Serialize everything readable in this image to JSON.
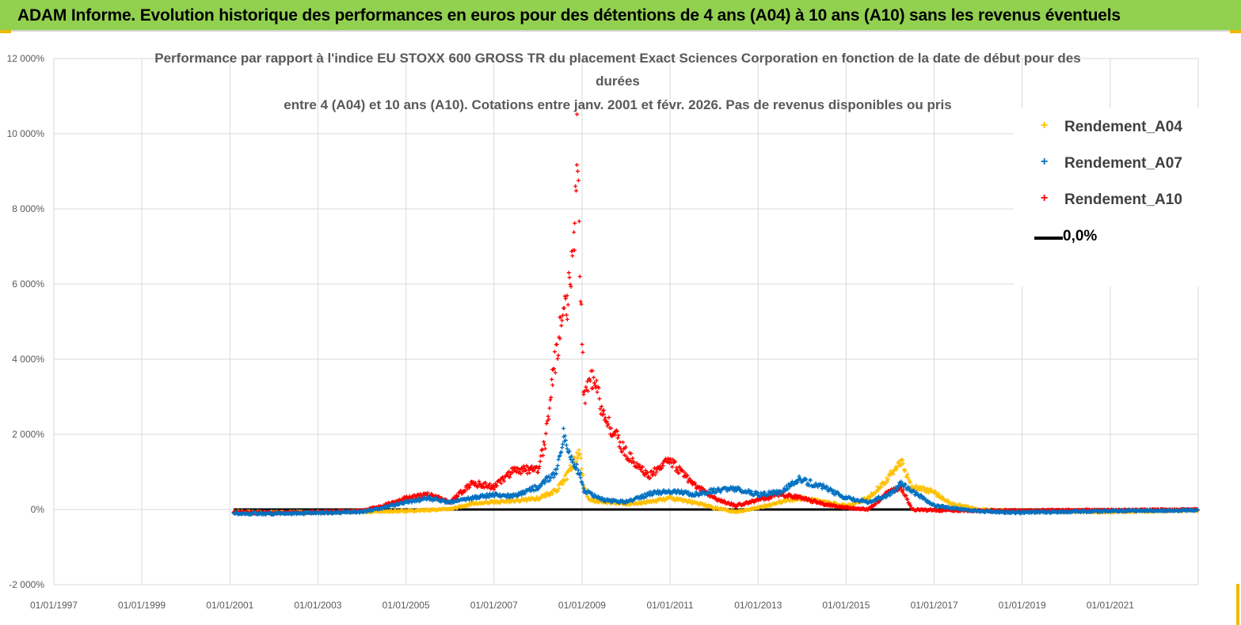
{
  "header": {
    "banner_title": "ADAM Informe. Evolution historique des performances en euros pour des détentions de 4 ans (A04) à 10 ans (A10) sans les revenus éventuels"
  },
  "chart_data": {
    "type": "scatter",
    "title_lines": [
      "Performance par rapport à l'indice EU STOXX 600 GROSS TR  du placement Exact Sciences Corporation en fonction de la date de début pour des",
      "durées",
      "entre 4 (A04) et 10 ans (A10).  Cotations entre janv. 2001 et févr.  2026. Pas de revenus disponibles ou pris"
    ],
    "x_axis": {
      "type": "date",
      "min": "1997-01-01",
      "max": "2023-01-01",
      "tick_labels": [
        "01/01/1997",
        "01/01/1999",
        "01/01/2001",
        "01/01/2003",
        "01/01/2005",
        "01/01/2007",
        "01/01/2009",
        "01/01/2011",
        "01/01/2013",
        "01/01/2015",
        "01/01/2017",
        "01/01/2019",
        "01/01/2021"
      ]
    },
    "y_axis": {
      "min": -2000,
      "max": 12000,
      "unit": "%",
      "tick_values": [
        -2000,
        0,
        2000,
        4000,
        6000,
        8000,
        10000,
        12000
      ],
      "tick_labels": [
        "-2 000%",
        "0%",
        "2 000%",
        "4 000%",
        "6 000%",
        "8 000%",
        "10 000%",
        "12 000%"
      ]
    },
    "grid": true,
    "legend_position": "top-right",
    "series": [
      {
        "name": "Rendement_A04",
        "color": "#ffc000",
        "marker": "plus",
        "points": [
          [
            "2001-02-01",
            -60
          ],
          [
            "2002-01-01",
            -80
          ],
          [
            "2003-01-01",
            -70
          ],
          [
            "2004-01-01",
            -60
          ],
          [
            "2005-01-01",
            -40
          ],
          [
            "2005-07-01",
            -20
          ],
          [
            "2006-01-01",
            20
          ],
          [
            "2006-07-01",
            150
          ],
          [
            "2007-01-01",
            200
          ],
          [
            "2007-06-01",
            220
          ],
          [
            "2008-01-01",
            300
          ],
          [
            "2008-06-01",
            500
          ],
          [
            "2008-09-01",
            900
          ],
          [
            "2008-11-01",
            1300
          ],
          [
            "2008-12-15",
            1550
          ],
          [
            "2009-01-15",
            600
          ],
          [
            "2009-03-01",
            250
          ],
          [
            "2009-07-01",
            200
          ],
          [
            "2010-01-01",
            150
          ],
          [
            "2010-07-01",
            200
          ],
          [
            "2011-01-01",
            300
          ],
          [
            "2011-07-01",
            200
          ],
          [
            "2012-01-01",
            50
          ],
          [
            "2012-07-01",
            -60
          ],
          [
            "2013-01-01",
            50
          ],
          [
            "2013-07-01",
            200
          ],
          [
            "2014-01-01",
            300
          ],
          [
            "2014-07-01",
            200
          ],
          [
            "2015-01-01",
            100
          ],
          [
            "2015-07-01",
            300
          ],
          [
            "2016-01-01",
            900
          ],
          [
            "2016-04-01",
            1300
          ],
          [
            "2016-07-01",
            600
          ],
          [
            "2016-12-01",
            500
          ],
          [
            "2017-06-01",
            150
          ],
          [
            "2018-01-01",
            0
          ],
          [
            "2019-01-01",
            -50
          ],
          [
            "2020-01-01",
            -60
          ],
          [
            "2021-01-01",
            -60
          ],
          [
            "2022-01-01",
            -40
          ],
          [
            "2022-12-31",
            -20
          ]
        ]
      },
      {
        "name": "Rendement_A07",
        "color": "#0070c0",
        "marker": "plus",
        "points": [
          [
            "2001-02-01",
            -100
          ],
          [
            "2002-01-01",
            -110
          ],
          [
            "2003-01-01",
            -90
          ],
          [
            "2004-01-01",
            -70
          ],
          [
            "2004-07-01",
            50
          ],
          [
            "2005-01-01",
            200
          ],
          [
            "2005-07-01",
            300
          ],
          [
            "2006-01-01",
            200
          ],
          [
            "2006-07-01",
            300
          ],
          [
            "2007-01-01",
            400
          ],
          [
            "2007-06-01",
            350
          ],
          [
            "2008-01-01",
            600
          ],
          [
            "2008-06-01",
            1000
          ],
          [
            "2008-08-01",
            2000
          ],
          [
            "2008-11-01",
            1200
          ],
          [
            "2008-12-20",
            900
          ],
          [
            "2009-01-15",
            500
          ],
          [
            "2009-07-01",
            250
          ],
          [
            "2010-01-01",
            200
          ],
          [
            "2010-07-01",
            400
          ],
          [
            "2011-01-01",
            500
          ],
          [
            "2011-07-01",
            400
          ],
          [
            "2012-01-01",
            500
          ],
          [
            "2012-07-01",
            550
          ],
          [
            "2013-01-01",
            400
          ],
          [
            "2013-07-01",
            450
          ],
          [
            "2013-12-01",
            800
          ],
          [
            "2014-07-01",
            600
          ],
          [
            "2015-01-01",
            300
          ],
          [
            "2015-07-01",
            200
          ],
          [
            "2016-01-01",
            400
          ],
          [
            "2016-04-01",
            700
          ],
          [
            "2016-07-01",
            500
          ],
          [
            "2017-01-01",
            100
          ],
          [
            "2018-01-01",
            -50
          ],
          [
            "2019-01-01",
            -80
          ],
          [
            "2020-01-01",
            -60
          ],
          [
            "2021-01-01",
            -40
          ],
          [
            "2022-01-01",
            -30
          ],
          [
            "2022-12-31",
            -20
          ]
        ]
      },
      {
        "name": "Rendement_A10",
        "color": "#ff0000",
        "marker": "plus",
        "points": [
          [
            "2001-02-01",
            -80
          ],
          [
            "2002-01-01",
            -90
          ],
          [
            "2003-01-01",
            -70
          ],
          [
            "2004-01-01",
            -40
          ],
          [
            "2004-07-01",
            100
          ],
          [
            "2005-01-01",
            300
          ],
          [
            "2005-07-01",
            400
          ],
          [
            "2006-01-01",
            200
          ],
          [
            "2006-07-01",
            700
          ],
          [
            "2007-01-01",
            600
          ],
          [
            "2007-06-01",
            1000
          ],
          [
            "2008-01-01",
            1100
          ],
          [
            "2008-03-01",
            1800
          ],
          [
            "2008-05-01",
            3500
          ],
          [
            "2008-07-01",
            4800
          ],
          [
            "2008-09-01",
            5500
          ],
          [
            "2008-11-01",
            7500
          ],
          [
            "2008-11-20",
            9900
          ],
          [
            "2008-12-20",
            6000
          ],
          [
            "2009-01-15",
            3000
          ],
          [
            "2009-04-01",
            3500
          ],
          [
            "2009-07-01",
            2500
          ],
          [
            "2009-10-01",
            2000
          ],
          [
            "2010-01-01",
            1500
          ],
          [
            "2010-07-01",
            900
          ],
          [
            "2011-01-01",
            1300
          ],
          [
            "2011-07-01",
            700
          ],
          [
            "2012-01-01",
            300
          ],
          [
            "2012-07-01",
            100
          ],
          [
            "2013-01-01",
            250
          ],
          [
            "2013-07-01",
            400
          ],
          [
            "2014-01-01",
            300
          ],
          [
            "2014-07-01",
            150
          ],
          [
            "2015-01-01",
            50
          ],
          [
            "2015-07-01",
            0
          ],
          [
            "2016-01-01",
            500
          ],
          [
            "2016-04-01",
            600
          ],
          [
            "2016-07-01",
            0
          ],
          [
            "2017-01-01",
            -20
          ],
          [
            "2018-01-01",
            -30
          ],
          [
            "2019-01-01",
            -30
          ],
          [
            "2020-01-01",
            -20
          ],
          [
            "2021-01-01",
            -20
          ],
          [
            "2022-01-01",
            -10
          ],
          [
            "2022-12-31",
            0
          ]
        ]
      },
      {
        "name": "0,0%",
        "color": "#000000",
        "marker": "line",
        "points": [
          [
            "2001-02-01",
            0
          ],
          [
            "2022-12-31",
            0
          ]
        ]
      }
    ]
  }
}
